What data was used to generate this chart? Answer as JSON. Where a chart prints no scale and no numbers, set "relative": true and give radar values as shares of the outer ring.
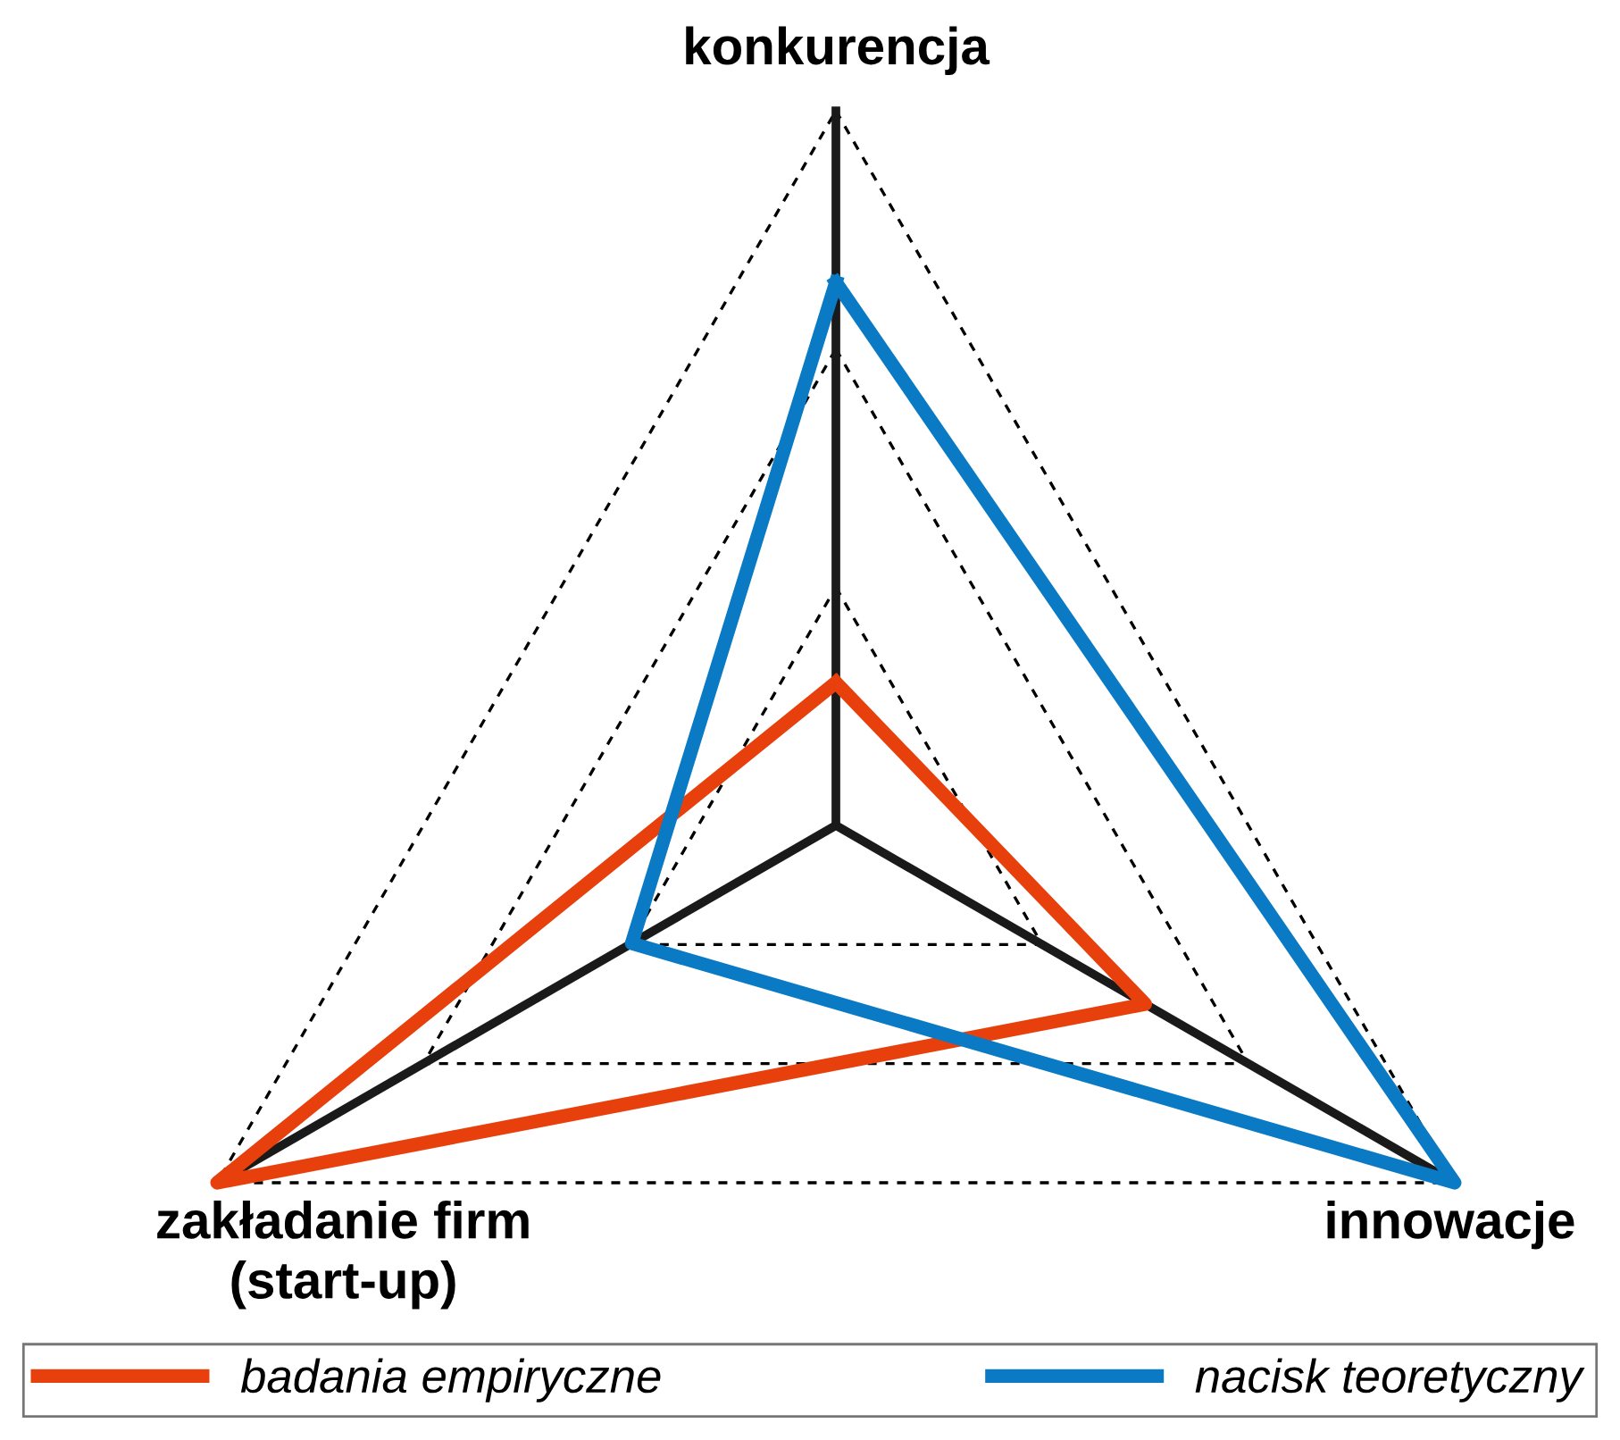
{
  "chart_data": {
    "type": "radar",
    "relative": true,
    "grid": true,
    "legend": "bottom",
    "line_style": "solid",
    "marker": "none",
    "categories": [
      "konkurencja",
      "innowacje",
      "zakładanie firm\n(start-up)"
    ],
    "series": [
      {
        "name": "badania empiryczne",
        "color": "#e8400c",
        "values": [
          0.2,
          0.5,
          1.0
        ]
      },
      {
        "name": "nacisk teoretyczny",
        "color": "#0a7ac4",
        "values": [
          0.76,
          1.0,
          0.33
        ]
      }
    ]
  }
}
